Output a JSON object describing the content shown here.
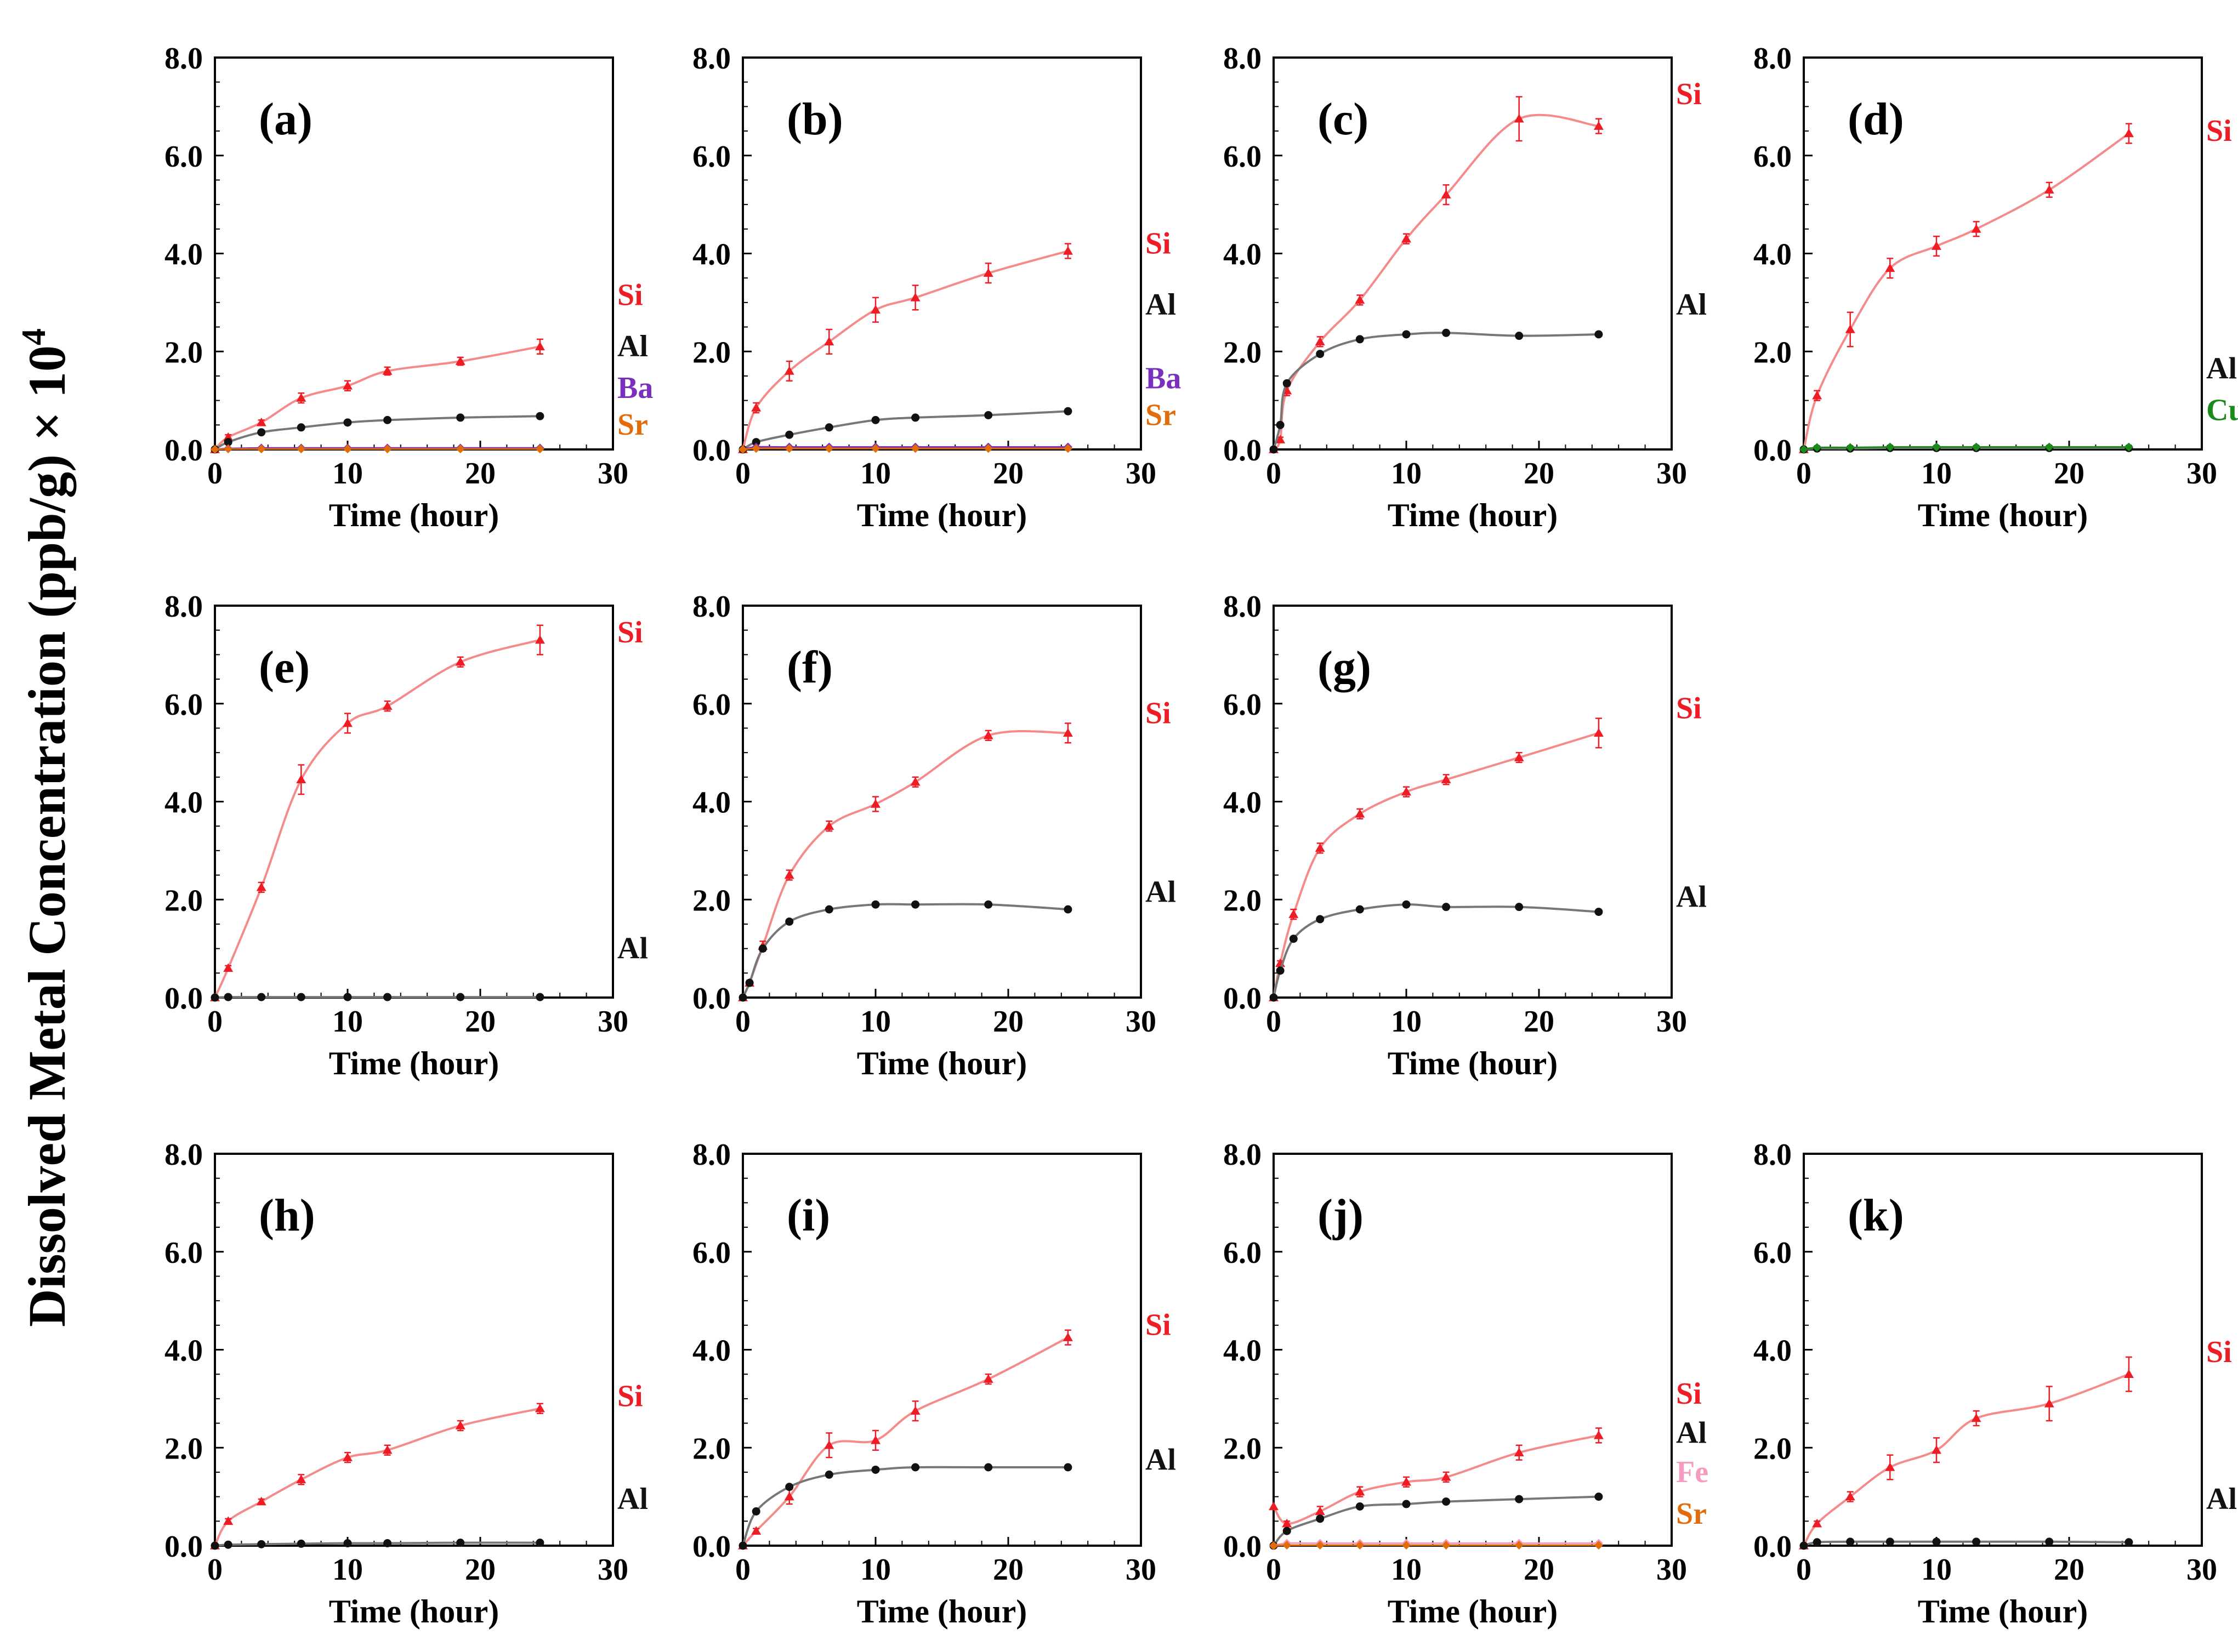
{
  "figure": {
    "ylabel": "Dissolved Metal Concentration (ppb/g) × 10",
    "ylabel_sup": "4",
    "xlabel": "Time (hour)"
  },
  "colors": {
    "Si": "#ee1c25",
    "Al": "#111111",
    "Ba": "#7a2fbf",
    "Sr": "#e36c0a",
    "Cu": "#1a8a1a",
    "Fe": "#f59ac0",
    "fit_Si": "#f58a8a",
    "fit_Al": "#777777"
  },
  "chart_data": [
    {
      "id": "a",
      "type": "scatter",
      "panel_label": "(a)",
      "xlabel": "Time (hour)",
      "xlim": [
        0,
        30
      ],
      "ylim": [
        0,
        8
      ],
      "xticks": [
        "0",
        "10",
        "20",
        "30"
      ],
      "yticks": [
        "0.0",
        "2.0",
        "4.0",
        "6.0",
        "8.0"
      ],
      "series": [
        {
          "name": "Si",
          "x": [
            0,
            1,
            3.5,
            6.5,
            10,
            13,
            18.5,
            24.5
          ],
          "y": [
            0,
            0.25,
            0.55,
            1.05,
            1.3,
            1.6,
            1.8,
            2.1
          ],
          "err": [
            0,
            0.05,
            0.05,
            0.1,
            0.1,
            0.08,
            0.08,
            0.15
          ]
        },
        {
          "name": "Al",
          "x": [
            0,
            1,
            3.5,
            6.5,
            10,
            13,
            18.5,
            24.5
          ],
          "y": [
            0,
            0.15,
            0.35,
            0.45,
            0.55,
            0.6,
            0.65,
            0.68
          ]
        },
        {
          "name": "Ba",
          "x": [
            0,
            1,
            3.5,
            6.5,
            10,
            13,
            18.5,
            24.5
          ],
          "y": [
            0,
            0.02,
            0.03,
            0.03,
            0.03,
            0.03,
            0.03,
            0.03
          ]
        },
        {
          "name": "Sr",
          "x": [
            0,
            1,
            3.5,
            6.5,
            10,
            13,
            18.5,
            24.5
          ],
          "y": [
            0,
            0.01,
            0.01,
            0.01,
            0.01,
            0.01,
            0.01,
            0.01
          ]
        }
      ],
      "legend": [
        {
          "name": "Si",
          "y": 2.95
        },
        {
          "name": "Al",
          "y": 1.9
        },
        {
          "name": "Ba",
          "y": 1.05
        },
        {
          "name": "Sr",
          "y": 0.3
        }
      ]
    },
    {
      "id": "b",
      "type": "scatter",
      "panel_label": "(b)",
      "xlabel": "Time (hour)",
      "xlim": [
        0,
        30
      ],
      "ylim": [
        0,
        8
      ],
      "xticks": [
        "0",
        "10",
        "20",
        "30"
      ],
      "yticks": [
        "0.0",
        "2.0",
        "4.0",
        "6.0",
        "8.0"
      ],
      "series": [
        {
          "name": "Si",
          "x": [
            0,
            1,
            3.5,
            6.5,
            10,
            13,
            18.5,
            24.5
          ],
          "y": [
            0,
            0.85,
            1.6,
            2.2,
            2.85,
            3.1,
            3.6,
            4.05
          ],
          "err": [
            0,
            0.1,
            0.2,
            0.25,
            0.25,
            0.25,
            0.2,
            0.15
          ]
        },
        {
          "name": "Al",
          "x": [
            0,
            1,
            3.5,
            6.5,
            10,
            13,
            18.5,
            24.5
          ],
          "y": [
            0,
            0.15,
            0.3,
            0.45,
            0.6,
            0.65,
            0.7,
            0.78
          ]
        },
        {
          "name": "Ba",
          "x": [
            0,
            1,
            3.5,
            6.5,
            10,
            13,
            18.5,
            24.5
          ],
          "y": [
            0,
            0.05,
            0.05,
            0.05,
            0.05,
            0.05,
            0.05,
            0.05
          ]
        },
        {
          "name": "Sr",
          "x": [
            0,
            1,
            3.5,
            6.5,
            10,
            13,
            18.5,
            24.5
          ],
          "y": [
            0,
            0.02,
            0.02,
            0.02,
            0.02,
            0.02,
            0.02,
            0.02
          ]
        }
      ],
      "legend": [
        {
          "name": "Si",
          "y": 4.0
        },
        {
          "name": "Al",
          "y": 2.75
        },
        {
          "name": "Ba",
          "y": 1.25
        },
        {
          "name": "Sr",
          "y": 0.5
        }
      ]
    },
    {
      "id": "c",
      "type": "scatter",
      "panel_label": "(c)",
      "xlabel": "Time (hour)",
      "xlim": [
        0,
        30
      ],
      "ylim": [
        0,
        8
      ],
      "xticks": [
        "0",
        "10",
        "20",
        "30"
      ],
      "yticks": [
        "0.0",
        "2.0",
        "4.0",
        "6.0",
        "8.0"
      ],
      "series": [
        {
          "name": "Si",
          "x": [
            0,
            0.5,
            1,
            3.5,
            6.5,
            10,
            13,
            18.5,
            24.5
          ],
          "y": [
            0,
            0.2,
            1.2,
            2.2,
            3.05,
            4.3,
            5.2,
            6.75,
            6.6
          ],
          "err": [
            0,
            0.05,
            0.1,
            0.1,
            0.1,
            0.1,
            0.2,
            0.45,
            0.15
          ]
        },
        {
          "name": "Al",
          "x": [
            0,
            0.5,
            1,
            3.5,
            6.5,
            10,
            13,
            18.5,
            24.5
          ],
          "y": [
            0,
            0.5,
            1.35,
            1.95,
            2.25,
            2.35,
            2.38,
            2.32,
            2.35
          ]
        }
      ],
      "legend": [
        {
          "name": "Si",
          "y": 7.05
        },
        {
          "name": "Al",
          "y": 2.75
        }
      ]
    },
    {
      "id": "d",
      "type": "scatter",
      "panel_label": "(d)",
      "xlabel": "Time (hour)",
      "xlim": [
        0,
        30
      ],
      "ylim": [
        0,
        8
      ],
      "xticks": [
        "0",
        "10",
        "20",
        "30"
      ],
      "yticks": [
        "0.0",
        "2.0",
        "4.0",
        "6.0",
        "8.0"
      ],
      "series": [
        {
          "name": "Si",
          "x": [
            0,
            1,
            3.5,
            6.5,
            10,
            13,
            18.5,
            24.5
          ],
          "y": [
            0,
            1.1,
            2.45,
            3.7,
            4.15,
            4.5,
            5.3,
            6.45
          ],
          "err": [
            0,
            0.1,
            0.35,
            0.2,
            0.2,
            0.15,
            0.15,
            0.2
          ]
        },
        {
          "name": "Al",
          "x": [
            0,
            1,
            3.5,
            6.5,
            10,
            13,
            18.5,
            24.5
          ],
          "y": [
            0,
            0.02,
            0.02,
            0.03,
            0.03,
            0.03,
            0.03,
            0.03
          ]
        },
        {
          "name": "Cu",
          "x": [
            0,
            1,
            3.5,
            6.5,
            10,
            13,
            18.5,
            24.5
          ],
          "y": [
            0,
            0.04,
            0.04,
            0.05,
            0.05,
            0.05,
            0.05,
            0.05
          ]
        }
      ],
      "legend": [
        {
          "name": "Si",
          "y": 6.3
        },
        {
          "name": "Al",
          "y": 1.45
        },
        {
          "name": "Cu",
          "y": 0.6
        }
      ]
    },
    {
      "id": "e",
      "type": "scatter",
      "panel_label": "(e)",
      "xlabel": "Time (hour)",
      "xlim": [
        0,
        30
      ],
      "ylim": [
        0,
        8
      ],
      "xticks": [
        "0",
        "10",
        "20",
        "30"
      ],
      "yticks": [
        "0.0",
        "2.0",
        "4.0",
        "6.0",
        "8.0"
      ],
      "series": [
        {
          "name": "Si",
          "x": [
            0,
            1,
            3.5,
            6.5,
            10,
            13,
            18.5,
            24.5
          ],
          "y": [
            0,
            0.6,
            2.25,
            4.45,
            5.6,
            5.95,
            6.85,
            7.3
          ],
          "err": [
            0,
            0.05,
            0.1,
            0.3,
            0.2,
            0.1,
            0.1,
            0.3
          ]
        },
        {
          "name": "Al",
          "x": [
            0,
            1,
            3.5,
            6.5,
            10,
            13,
            18.5,
            24.5
          ],
          "y": [
            0,
            0.01,
            0.01,
            0.01,
            0.01,
            0.01,
            0.01,
            0.01
          ]
        }
      ],
      "legend": [
        {
          "name": "Si",
          "y": 7.25
        },
        {
          "name": "Al",
          "y": 0.8
        }
      ]
    },
    {
      "id": "f",
      "type": "scatter",
      "panel_label": "(f)",
      "xlabel": "Time (hour)",
      "xlim": [
        0,
        30
      ],
      "ylim": [
        0,
        8
      ],
      "xticks": [
        "0",
        "10",
        "20",
        "30"
      ],
      "yticks": [
        "0.0",
        "2.0",
        "4.0",
        "6.0",
        "8.0"
      ],
      "series": [
        {
          "name": "Si",
          "x": [
            0,
            0.5,
            1.5,
            3.5,
            6.5,
            10,
            13,
            18.5,
            24.5
          ],
          "y": [
            0,
            0.3,
            1.05,
            2.5,
            3.5,
            3.95,
            4.4,
            5.35,
            5.4
          ],
          "err": [
            0,
            0.05,
            0.1,
            0.1,
            0.1,
            0.15,
            0.1,
            0.1,
            0.2
          ]
        },
        {
          "name": "Al",
          "x": [
            0,
            0.5,
            1.5,
            3.5,
            6.5,
            10,
            13,
            18.5,
            24.5
          ],
          "y": [
            0,
            0.3,
            1.0,
            1.55,
            1.8,
            1.9,
            1.9,
            1.9,
            1.8
          ]
        }
      ],
      "legend": [
        {
          "name": "Si",
          "y": 5.6
        },
        {
          "name": "Al",
          "y": 1.95
        }
      ]
    },
    {
      "id": "g",
      "type": "scatter",
      "panel_label": "(g)",
      "xlabel": "Time (hour)",
      "xlim": [
        0,
        30
      ],
      "ylim": [
        0,
        8
      ],
      "xticks": [
        "0",
        "10",
        "20",
        "30"
      ],
      "yticks": [
        "0.0",
        "2.0",
        "4.0",
        "6.0",
        "8.0"
      ],
      "series": [
        {
          "name": "Si",
          "x": [
            0,
            0.5,
            1.5,
            3.5,
            6.5,
            10,
            13,
            18.5,
            24.5
          ],
          "y": [
            0,
            0.7,
            1.7,
            3.05,
            3.75,
            4.2,
            4.45,
            4.9,
            5.4
          ],
          "err": [
            0,
            0.05,
            0.1,
            0.1,
            0.1,
            0.1,
            0.1,
            0.1,
            0.3
          ]
        },
        {
          "name": "Al",
          "x": [
            0,
            0.5,
            1.5,
            3.5,
            6.5,
            10,
            13,
            18.5,
            24.5
          ],
          "y": [
            0,
            0.55,
            1.2,
            1.6,
            1.8,
            1.9,
            1.85,
            1.85,
            1.75
          ]
        }
      ],
      "legend": [
        {
          "name": "Si",
          "y": 5.7
        },
        {
          "name": "Al",
          "y": 1.85
        }
      ]
    },
    {
      "id": "h",
      "type": "scatter",
      "panel_label": "(h)",
      "xlabel": "Time (hour)",
      "xlim": [
        0,
        30
      ],
      "ylim": [
        0,
        8
      ],
      "xticks": [
        "0",
        "10",
        "20",
        "30"
      ],
      "yticks": [
        "0.0",
        "2.0",
        "4.0",
        "6.0",
        "8.0"
      ],
      "series": [
        {
          "name": "Si",
          "x": [
            0,
            1,
            3.5,
            6.5,
            10,
            13,
            18.5,
            24.5
          ],
          "y": [
            0,
            0.5,
            0.9,
            1.35,
            1.8,
            1.95,
            2.45,
            2.8
          ],
          "err": [
            0,
            0.05,
            0.05,
            0.1,
            0.1,
            0.1,
            0.1,
            0.1
          ]
        },
        {
          "name": "Al",
          "x": [
            0,
            1,
            3.5,
            6.5,
            10,
            13,
            18.5,
            24.5
          ],
          "y": [
            0,
            0.02,
            0.03,
            0.04,
            0.05,
            0.05,
            0.06,
            0.06
          ]
        }
      ],
      "legend": [
        {
          "name": "Si",
          "y": 2.85
        },
        {
          "name": "Al",
          "y": 0.75
        }
      ]
    },
    {
      "id": "i",
      "type": "scatter",
      "panel_label": "(i)",
      "xlabel": "Time (hour)",
      "xlim": [
        0,
        30
      ],
      "ylim": [
        0,
        8
      ],
      "xticks": [
        "0",
        "10",
        "20",
        "30"
      ],
      "yticks": [
        "0.0",
        "2.0",
        "4.0",
        "6.0",
        "8.0"
      ],
      "series": [
        {
          "name": "Si",
          "x": [
            0,
            1,
            3.5,
            6.5,
            10,
            13,
            18.5,
            24.5
          ],
          "y": [
            0,
            0.3,
            1.0,
            2.05,
            2.15,
            2.75,
            3.4,
            4.25
          ],
          "err": [
            0,
            0.05,
            0.15,
            0.25,
            0.2,
            0.2,
            0.1,
            0.15
          ]
        },
        {
          "name": "Al",
          "x": [
            0,
            1,
            3.5,
            6.5,
            10,
            13,
            18.5,
            24.5
          ],
          "y": [
            0,
            0.7,
            1.2,
            1.45,
            1.55,
            1.6,
            1.6,
            1.6
          ]
        }
      ],
      "legend": [
        {
          "name": "Si",
          "y": 4.3
        },
        {
          "name": "Al",
          "y": 1.55
        }
      ]
    },
    {
      "id": "j",
      "type": "scatter",
      "panel_label": "(j)",
      "xlabel": "Time (hour)",
      "xlim": [
        0,
        30
      ],
      "ylim": [
        0,
        8
      ],
      "xticks": [
        "0",
        "10",
        "20",
        "30"
      ],
      "yticks": [
        "0.0",
        "2.0",
        "4.0",
        "6.0",
        "8.0"
      ],
      "series": [
        {
          "name": "Si",
          "x": [
            0,
            1,
            3.5,
            6.5,
            10,
            13,
            18.5,
            24.5
          ],
          "y": [
            0.8,
            0.45,
            0.7,
            1.1,
            1.3,
            1.4,
            1.9,
            2.25
          ],
          "err": [
            0,
            0.05,
            0.1,
            0.1,
            0.1,
            0.1,
            0.15,
            0.15
          ]
        },
        {
          "name": "Al",
          "x": [
            0,
            1,
            3.5,
            6.5,
            10,
            13,
            18.5,
            24.5
          ],
          "y": [
            0,
            0.3,
            0.55,
            0.8,
            0.85,
            0.9,
            0.95,
            1.0
          ]
        },
        {
          "name": "Fe",
          "x": [
            0,
            1,
            3.5,
            6.5,
            10,
            13,
            18.5,
            24.5
          ],
          "y": [
            0,
            0.05,
            0.05,
            0.05,
            0.05,
            0.05,
            0.05,
            0.05
          ]
        },
        {
          "name": "Sr",
          "x": [
            0,
            1,
            3.5,
            6.5,
            10,
            13,
            18.5,
            24.5
          ],
          "y": [
            0,
            0.01,
            0.01,
            0.01,
            0.01,
            0.01,
            0.01,
            0.01
          ]
        }
      ],
      "legend": [
        {
          "name": "Si",
          "y": 2.9
        },
        {
          "name": "Al",
          "y": 2.1
        },
        {
          "name": "Fe",
          "y": 1.3
        },
        {
          "name": "Sr",
          "y": 0.45
        }
      ]
    },
    {
      "id": "k",
      "type": "scatter",
      "panel_label": "(k)",
      "xlabel": "Time (hour)",
      "xlim": [
        0,
        30
      ],
      "ylim": [
        0,
        8
      ],
      "xticks": [
        "0",
        "10",
        "20",
        "30"
      ],
      "yticks": [
        "0.0",
        "2.0",
        "4.0",
        "6.0",
        "8.0"
      ],
      "series": [
        {
          "name": "Si",
          "x": [
            0,
            1,
            3.5,
            6.5,
            10,
            13,
            18.5,
            24.5
          ],
          "y": [
            0,
            0.45,
            1.0,
            1.6,
            1.95,
            2.6,
            2.9,
            3.5
          ],
          "err": [
            0,
            0.05,
            0.1,
            0.25,
            0.25,
            0.15,
            0.35,
            0.35
          ]
        },
        {
          "name": "Al",
          "x": [
            0,
            1,
            3.5,
            6.5,
            10,
            13,
            18.5,
            24.5
          ],
          "y": [
            0,
            0.07,
            0.08,
            0.08,
            0.08,
            0.08,
            0.08,
            0.07
          ]
        }
      ],
      "legend": [
        {
          "name": "Si",
          "y": 3.75
        },
        {
          "name": "Al",
          "y": 0.75
        }
      ]
    }
  ]
}
